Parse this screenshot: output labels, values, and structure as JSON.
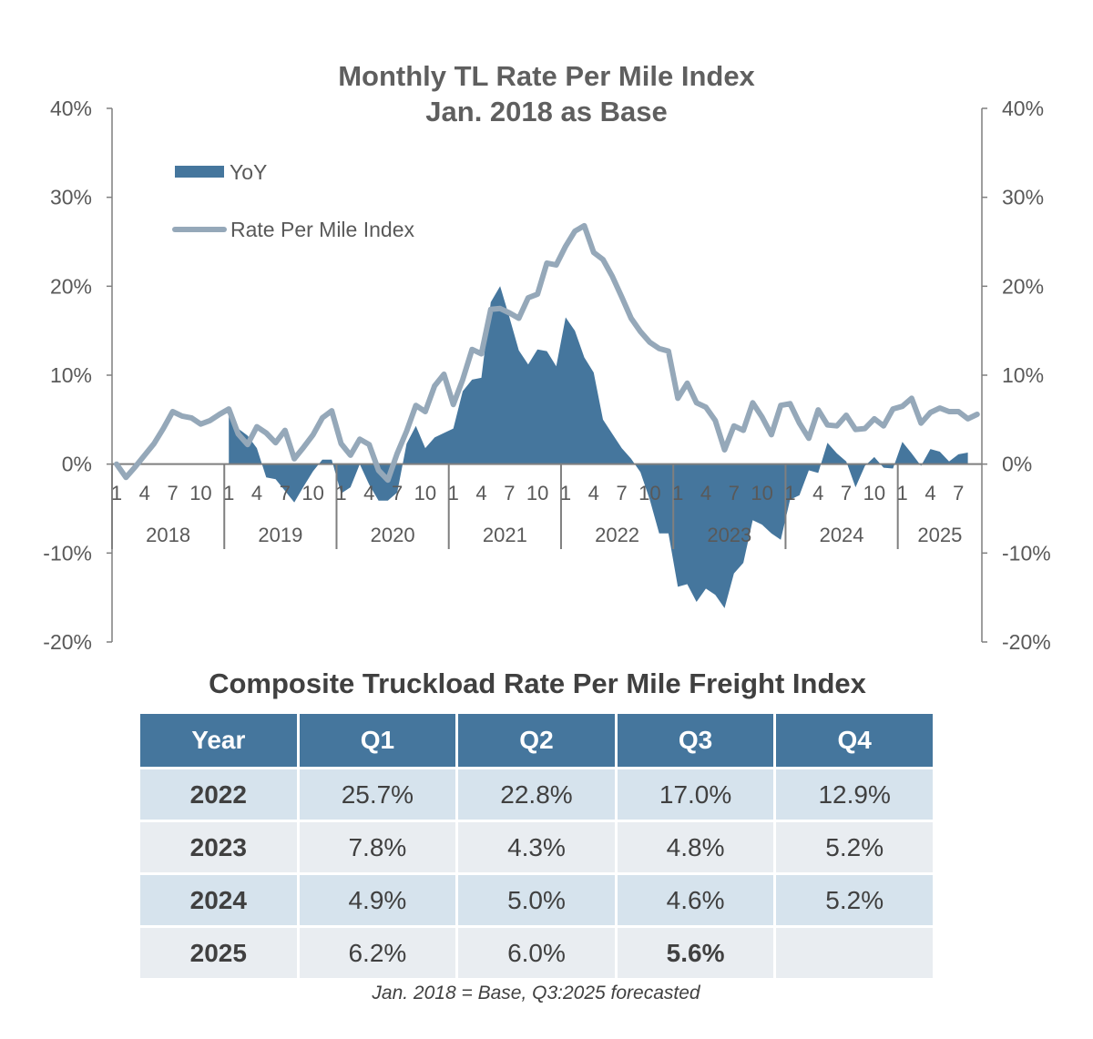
{
  "chart_data": {
    "type": "area+line",
    "title": "Monthly TL Rate Per Mile Index",
    "subtitle": "Jan. 2018 as Base",
    "ylim": [
      -20,
      40
    ],
    "yticks": [
      "-20%",
      "-10%",
      "0%",
      "10%",
      "20%",
      "30%",
      "40%"
    ],
    "ytick_values": [
      -20,
      -10,
      0,
      10,
      20,
      30,
      40
    ],
    "right_axis_ticks": [
      "-20%",
      "-10%",
      "0%",
      "10%",
      "20%",
      "30%",
      "40%"
    ],
    "month_tick_labels": [
      "1",
      "4",
      "7",
      "10"
    ],
    "years": [
      "2018",
      "2019",
      "2020",
      "2021",
      "2022",
      "2023",
      "2024",
      "2025"
    ],
    "legend_position": "top-left",
    "grid": false,
    "series": [
      {
        "name": "YoY",
        "type": "area",
        "color": "#45769d",
        "start_index": 12,
        "values": [
          6.0,
          4.0,
          3.2,
          1.8,
          -1.5,
          -1.7,
          -3.0,
          -4.3,
          -2.5,
          -0.8,
          0.5,
          0.5,
          -3.3,
          -2.6,
          0.0,
          -2.3,
          -4.1,
          -4.1,
          -3.2,
          2.3,
          4.3,
          1.8,
          3.0,
          3.5,
          4.0,
          8.2,
          9.5,
          9.7,
          18.2,
          20.0,
          16.5,
          12.8,
          11.2,
          12.9,
          12.7,
          11.0,
          16.5,
          15.0,
          12.0,
          10.3,
          5.0,
          3.4,
          1.8,
          0.6,
          -0.9,
          -4.0,
          -7.8,
          -7.8,
          -13.8,
          -13.5,
          -15.5,
          -14.0,
          -14.7,
          -16.2,
          -12.3,
          -11.1,
          -6.3,
          -6.8,
          -7.8,
          -8.5,
          -4.0,
          -3.5,
          -0.7,
          -1.0,
          2.4,
          1.2,
          0.3,
          -2.6,
          -0.2,
          0.8,
          -0.4,
          -0.5,
          2.5,
          1.2,
          -0.2,
          1.7,
          1.4,
          0.3,
          1.1,
          1.3
        ]
      },
      {
        "name": "Rate Per Mile Index",
        "type": "line",
        "color": "#95a8b9",
        "start_index": 0,
        "values": [
          0.0,
          -1.5,
          -0.3,
          1.0,
          2.3,
          4.0,
          5.9,
          5.4,
          5.2,
          4.5,
          4.9,
          5.6,
          6.2,
          3.4,
          2.2,
          4.2,
          3.5,
          2.4,
          3.8,
          0.6,
          1.9,
          3.3,
          5.2,
          6.0,
          2.3,
          1.0,
          2.8,
          2.2,
          -0.7,
          -1.8,
          1.2,
          3.7,
          6.6,
          5.9,
          8.8,
          10.1,
          6.7,
          9.5,
          12.9,
          12.4,
          17.4,
          17.5,
          17.0,
          16.4,
          18.7,
          19.1,
          22.6,
          22.4,
          24.5,
          26.2,
          26.8,
          23.8,
          23.0,
          21.1,
          18.8,
          16.4,
          14.9,
          13.7,
          13.0,
          12.7,
          7.4,
          9.1,
          6.9,
          6.4,
          4.9,
          1.6,
          4.3,
          3.8,
          6.9,
          5.3,
          3.3,
          6.6,
          6.8,
          4.6,
          2.9,
          6.1,
          4.4,
          4.3,
          5.5,
          3.9,
          4.0,
          5.1,
          4.3,
          6.2,
          6.5,
          7.4,
          4.6,
          5.8,
          6.3,
          5.9,
          5.9,
          5.1,
          5.6
        ]
      }
    ]
  },
  "table": {
    "title": "Composite Truckload Rate Per Mile Freight Index",
    "headers": [
      "Year",
      "Q1",
      "Q2",
      "Q3",
      "Q4"
    ],
    "rows": [
      {
        "year": "2022",
        "q1": "25.7%",
        "q2": "22.8%",
        "q3": "17.0%",
        "q4": "12.9%"
      },
      {
        "year": "2023",
        "q1": "7.8%",
        "q2": "4.3%",
        "q3": "4.8%",
        "q4": "5.2%"
      },
      {
        "year": "2024",
        "q1": "4.9%",
        "q2": "5.0%",
        "q3": "4.6%",
        "q4": "5.2%"
      },
      {
        "year": "2025",
        "q1": "6.2%",
        "q2": "6.0%",
        "q3": "5.6%",
        "q4": ""
      }
    ],
    "footnote": "Jan. 2018 = Base, Q3:2025 forecasted"
  }
}
